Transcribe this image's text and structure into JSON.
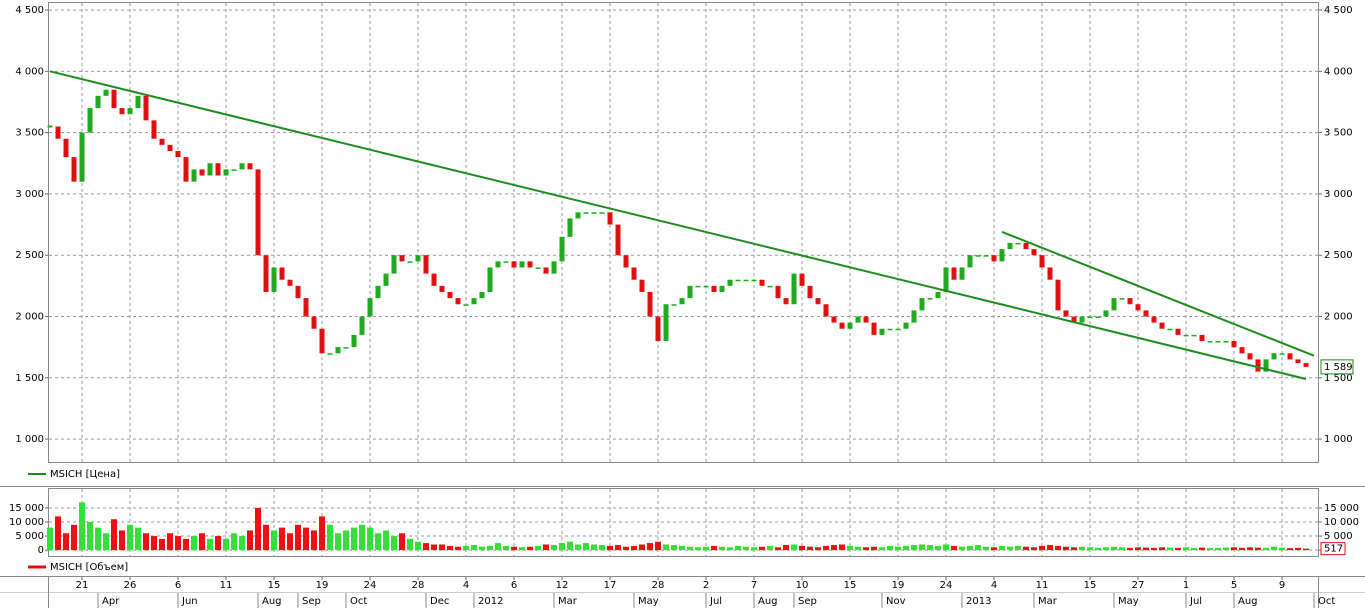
{
  "chart_data": [
    {
      "type": "candlestick",
      "series": [
        {
          "name": "MSICH [Цена]",
          "color": "#1a8a1a",
          "values": [
            3550,
            3450,
            3300,
            3100,
            3500,
            3700,
            3800,
            3850,
            3700,
            3650,
            3700,
            3800,
            3600,
            3450,
            3400,
            3350,
            3300,
            3100,
            3200,
            3150,
            3250,
            3150,
            3200,
            3200,
            3250,
            3200,
            2500,
            2200,
            2400,
            2300,
            2250,
            2150,
            2000,
            1900,
            1700,
            1700,
            1750,
            1750,
            1850,
            2000,
            2150,
            2250,
            2350,
            2500,
            2450,
            2450,
            2500,
            2350,
            2250,
            2200,
            2150,
            2100,
            2100,
            2150,
            2200,
            2400,
            2450,
            2450,
            2400,
            2450,
            2400,
            2400,
            2350,
            2450,
            2650,
            2800,
            2850,
            2850,
            2850,
            2850,
            2750,
            2500,
            2400,
            2300,
            2200,
            2000,
            1800,
            2100,
            2100,
            2150,
            2250,
            2250,
            2250,
            2200,
            2250,
            2300,
            2300,
            2300,
            2300,
            2250,
            2250,
            2150,
            2100,
            2350,
            2250,
            2150,
            2100,
            2000,
            1950,
            1900,
            1950,
            2000,
            1950,
            1850,
            1900,
            1900,
            1900,
            1950,
            2050,
            2150,
            2150,
            2200,
            2400,
            2300,
            2400,
            2500,
            2500,
            2500,
            2450,
            2550,
            2600,
            2600,
            2550,
            2500,
            2400,
            2300,
            2050,
            2000,
            1950,
            2000,
            2000,
            2000,
            2050,
            2150,
            2150,
            2100,
            2050,
            2000,
            1950,
            1900,
            1900,
            1850,
            1850,
            1850,
            1800,
            1800,
            1800,
            1800,
            1750,
            1700,
            1650,
            1550,
            1650,
            1700,
            1700,
            1650,
            1620,
            1589
          ]
        }
      ],
      "up_color": "#1faa1f",
      "down_color": "#e01010",
      "trend_color": "#1e8c1e",
      "last_label": "1 589",
      "ylim": [
        800,
        4550
      ],
      "yticks": [
        {
          "value": 1000,
          "label": "1 000"
        },
        {
          "value": 1500,
          "label": "1 500"
        },
        {
          "value": 2000,
          "label": "2 000"
        },
        {
          "value": 2500,
          "label": "2 500"
        },
        {
          "value": 3000,
          "label": "3 000"
        },
        {
          "value": 3500,
          "label": "3 500"
        },
        {
          "value": 4000,
          "label": "4 000"
        },
        {
          "value": 4500,
          "label": "4 500"
        }
      ],
      "xlim": [
        0,
        159
      ],
      "xticks": [
        {
          "value": 4,
          "label": "21"
        },
        {
          "value": 10,
          "label": "26"
        },
        {
          "value": 16,
          "label": "6"
        },
        {
          "value": 22,
          "label": "11"
        },
        {
          "value": 28,
          "label": "15"
        },
        {
          "value": 34,
          "label": "19"
        },
        {
          "value": 40,
          "label": "24"
        },
        {
          "value": 46,
          "label": "28"
        },
        {
          "value": 52,
          "label": "4"
        },
        {
          "value": 58,
          "label": "6"
        },
        {
          "value": 64,
          "label": "12"
        },
        {
          "value": 70,
          "label": "17"
        },
        {
          "value": 76,
          "label": "28"
        },
        {
          "value": 82,
          "label": "2"
        },
        {
          "value": 88,
          "label": "7"
        },
        {
          "value": 94,
          "label": "10"
        },
        {
          "value": 100,
          "label": "15"
        },
        {
          "value": 106,
          "label": "19"
        },
        {
          "value": 112,
          "label": "24"
        },
        {
          "value": 118,
          "label": "4"
        },
        {
          "value": 124,
          "label": "11"
        },
        {
          "value": 130,
          "label": "15"
        },
        {
          "value": 136,
          "label": "27"
        },
        {
          "value": 142,
          "label": "1"
        },
        {
          "value": 148,
          "label": "5"
        },
        {
          "value": 154,
          "label": "9"
        }
      ],
      "xticks_months": [
        {
          "value": 6,
          "label": "Apr"
        },
        {
          "value": 16,
          "label": "Jun"
        },
        {
          "value": 26,
          "label": "Aug"
        },
        {
          "value": 31,
          "label": "Sep"
        },
        {
          "value": 37,
          "label": "Oct"
        },
        {
          "value": 47,
          "label": "Dec"
        },
        {
          "value": 53,
          "label": "2012"
        },
        {
          "value": 63,
          "label": "Mar"
        },
        {
          "value": 73,
          "label": "May"
        },
        {
          "value": 82,
          "label": "Jul"
        },
        {
          "value": 88,
          "label": "Aug"
        },
        {
          "value": 93,
          "label": "Sep"
        },
        {
          "value": 104,
          "label": "Nov"
        },
        {
          "value": 114,
          "label": "2013"
        },
        {
          "value": 123,
          "label": "Mar"
        },
        {
          "value": 133,
          "label": "May"
        },
        {
          "value": 142,
          "label": "Jul"
        },
        {
          "value": 148,
          "label": "Aug"
        },
        {
          "value": 158,
          "label": "Oct"
        }
      ],
      "trendlines": [
        {
          "x": [
            0,
            157
          ],
          "y": [
            4000,
            1490
          ]
        },
        {
          "x": [
            119,
            158
          ],
          "y": [
            2690,
            1680
          ]
        }
      ],
      "grid": true
    },
    {
      "type": "bar",
      "series": [
        {
          "name": "MSICH [Объем]",
          "color": "#e01010",
          "values": [
            8000,
            12000,
            6000,
            9000,
            17000,
            10000,
            8000,
            6000,
            11000,
            7000,
            9000,
            8000,
            6000,
            5000,
            4000,
            6000,
            5000,
            4000,
            5000,
            6000,
            4000,
            5000,
            4000,
            6000,
            5000,
            7000,
            15000,
            9000,
            7000,
            8000,
            6000,
            9000,
            8000,
            7000,
            12000,
            9000,
            6000,
            7000,
            8000,
            9000,
            8000,
            6000,
            7000,
            5000,
            6000,
            4000,
            3000,
            2500,
            2000,
            2000,
            1500,
            1200,
            1500,
            1800,
            1200,
            1500,
            2500,
            1500,
            1200,
            1000,
            1200,
            1500,
            2000,
            1800,
            2500,
            3000,
            2000,
            2500,
            2000,
            1800,
            1500,
            1800,
            1200,
            1500,
            2000,
            2500,
            3000,
            2000,
            1800,
            1500,
            1200,
            1000,
            1200,
            1500,
            1200,
            1000,
            1500,
            1200,
            1000,
            1200,
            1500,
            1000,
            1800,
            2000,
            1500,
            1200,
            1000,
            1500,
            1800,
            2000,
            1500,
            1200,
            1000,
            1200,
            1000,
            1500,
            1200,
            1500,
            1800,
            2000,
            1800,
            1500,
            2000,
            1500,
            1200,
            1500,
            1800,
            1200,
            1000,
            1500,
            1200,
            1500,
            1200,
            1000,
            1500,
            1800,
            1500,
            1200,
            1000,
            1200,
            1000,
            800,
            1000,
            1200,
            1000,
            800,
            1000,
            900,
            800,
            1000,
            900,
            800,
            1000,
            800,
            900,
            700,
            800,
            900,
            1000,
            800,
            1000,
            900,
            800,
            1200,
            900,
            700,
            800,
            517
          ]
        }
      ],
      "up_color": "#33e033",
      "down_color": "#ee1111",
      "ylim": [
        -2100,
        21400
      ],
      "yticks": [
        0,
        {
          "value": 5000,
          "label": "5 000"
        },
        {
          "value": 10000,
          "label": "10 000"
        },
        {
          "value": 15000,
          "label": "15 000"
        }
      ],
      "xlim": [
        0,
        159
      ],
      "grid": true
    }
  ]
}
